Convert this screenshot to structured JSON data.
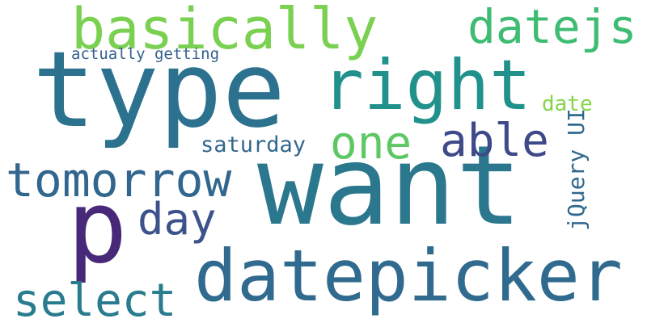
{
  "word_cloud": {
    "words": [
      {
        "key": "want",
        "text": "want",
        "color": "#2A778E"
      },
      {
        "key": "type",
        "text": "type",
        "color": "#2C728E"
      },
      {
        "key": "datepicker",
        "text": "datepicker",
        "color": "#306A8E"
      },
      {
        "key": "right",
        "text": "right",
        "color": "#21918C"
      },
      {
        "key": "basically",
        "text": "basically",
        "color": "#7AD151"
      },
      {
        "key": "p",
        "text": "p",
        "color": "#482878"
      },
      {
        "key": "tomorrow",
        "text": "tomorrow",
        "color": "#31668E"
      },
      {
        "key": "datejs",
        "text": "datejs",
        "color": "#3FBC73"
      },
      {
        "key": "able",
        "text": "able",
        "color": "#3E4A89"
      },
      {
        "key": "one",
        "text": "one",
        "color": "#5DC863"
      },
      {
        "key": "day",
        "text": "day",
        "color": "#3B528B"
      },
      {
        "key": "select",
        "text": "select",
        "color": "#287C8E"
      },
      {
        "key": "saturday",
        "text": "saturday",
        "color": "#31688E"
      },
      {
        "key": "jquery-ui",
        "text": "jQuery UI",
        "color": "#31688E"
      },
      {
        "key": "date",
        "text": "date",
        "color": "#84D44B"
      },
      {
        "key": "actually-getting",
        "text": "actually getting",
        "color": "#355F8D"
      }
    ]
  }
}
